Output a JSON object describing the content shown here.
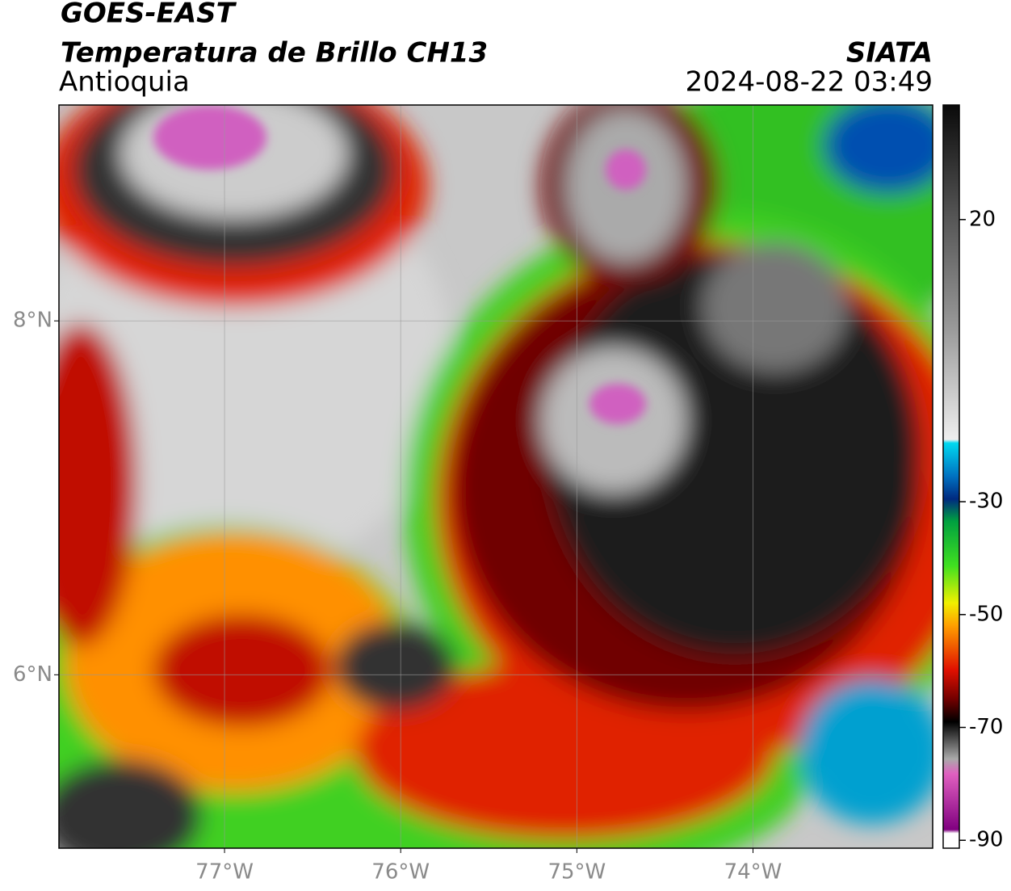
{
  "header": {
    "satellite": "GOES-EAST",
    "product": "Temperatura de Brillo CH13",
    "region": "Antioquia",
    "source": "SIATA",
    "datetime": "2024-08-22 03:49"
  },
  "map": {
    "xlim": [
      -77.94,
      -72.98
    ],
    "ylim": [
      5.02,
      9.22
    ],
    "xticks": [
      {
        "value": -77,
        "label": "77°W"
      },
      {
        "value": -76,
        "label": "76°W"
      },
      {
        "value": -75,
        "label": "75°W"
      },
      {
        "value": -74,
        "label": "74°W"
      }
    ],
    "yticks": [
      {
        "value": 8,
        "label": "8°N"
      },
      {
        "value": 6,
        "label": "6°N"
      }
    ],
    "grid": true
  },
  "colorbar": {
    "range": [
      -91.4,
      40.3
    ],
    "ticks": [
      20,
      -30,
      -50,
      -70,
      -90
    ]
  }
}
